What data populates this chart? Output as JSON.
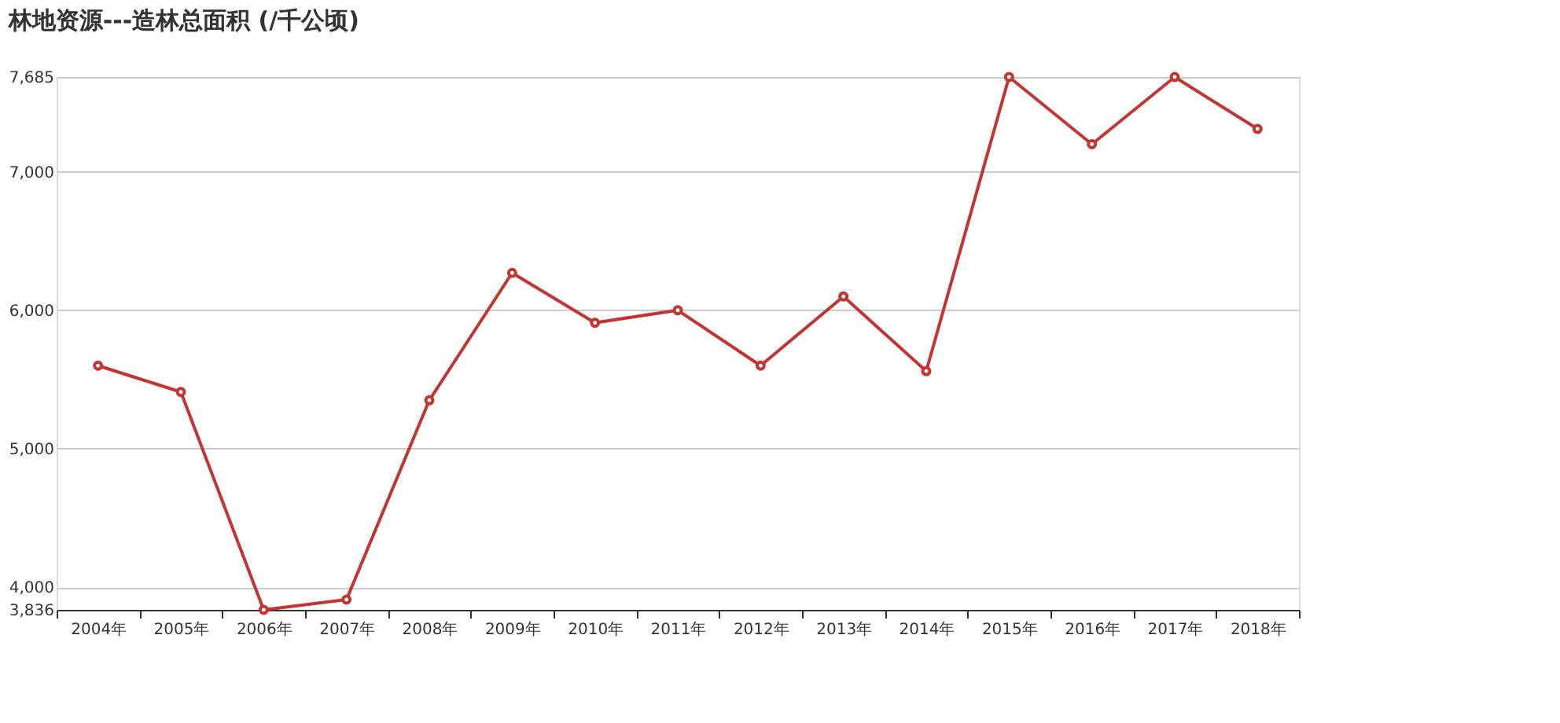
{
  "chart_data": {
    "type": "line",
    "title": "林地资源---造林总面积 (/千公顷)",
    "categories": [
      "2004年",
      "2005年",
      "2006年",
      "2007年",
      "2008年",
      "2009年",
      "2010年",
      "2011年",
      "2012年",
      "2013年",
      "2014年",
      "2015年",
      "2016年",
      "2017年",
      "2018年"
    ],
    "series": [
      {
        "color": "#c23531",
        "values": [
          5600,
          5410,
          3836,
          3910,
          5350,
          6270,
          5910,
          6000,
          5600,
          6100,
          5560,
          7685,
          7200,
          7685,
          7310
        ]
      }
    ],
    "ylim": [
      3836,
      7685
    ],
    "yticks": [
      {
        "value": 3836,
        "label": "3,836"
      },
      {
        "value": 4000,
        "label": "4,000"
      },
      {
        "value": 5000,
        "label": "5,000"
      },
      {
        "value": 6000,
        "label": "6,000"
      },
      {
        "value": 7000,
        "label": "7,000"
      },
      {
        "value": 7685,
        "label": "7,685"
      }
    ],
    "grid": "y",
    "marker": "circle",
    "line_style": "solid"
  }
}
